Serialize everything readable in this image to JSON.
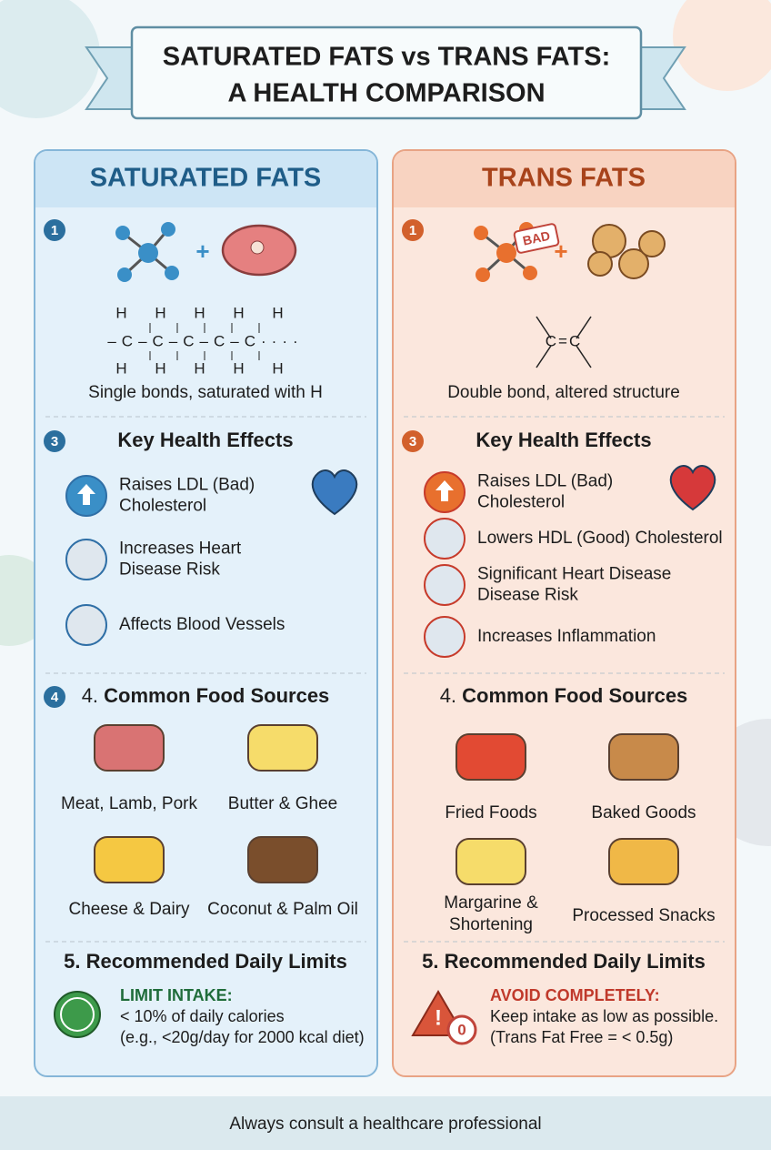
{
  "header": {
    "title_lines": [
      "SATURATED FATS vs TRANS FATS:",
      "A HEALTH COMPARISON"
    ]
  },
  "columns": [
    {
      "heading": "SATURATED FATS",
      "structure": {
        "step": "1",
        "formula": [
          "H H H H H",
          "–C–C–C–C–C····",
          "H H H H H"
        ],
        "caption": "Single bonds, saturated with H"
      },
      "effects": {
        "step": "3",
        "title": "Key Health Effects",
        "items": [
          {
            "lines": [
              "Raises LDL (Bad)",
              "Cholesterol"
            ]
          },
          {
            "lines": [
              "Increases Heart",
              "Disease Risk"
            ]
          },
          {
            "lines": [
              "Affects Blood Vessels"
            ]
          }
        ]
      },
      "foods": {
        "step": "4",
        "number": "4.",
        "title": "Common Food Sources",
        "items": [
          {
            "lines": [
              "Meat, Lamb, Pork"
            ]
          },
          {
            "lines": [
              "Butter & Ghee"
            ]
          },
          {
            "lines": [
              "Cheese & Dairy"
            ]
          },
          {
            "lines": [
              "Coconut & Palm Oil"
            ]
          }
        ]
      },
      "limits": {
        "title": "5. Recommended Daily Limits",
        "label": "LIMIT INTAKE:",
        "lines": [
          "< 10% of daily calories",
          "(e.g., <20g/day for 2000 kcal diet)"
        ]
      }
    },
    {
      "heading": "TRANS FATS",
      "structure": {
        "step": "1",
        "badge": "BAD",
        "formula": [
          "C=C"
        ],
        "caption": "Double bond, altered structure"
      },
      "effects": {
        "step": "3",
        "title": "Key Health Effects",
        "items": [
          {
            "lines": [
              "Raises LDL (Bad)",
              "Cholesterol"
            ]
          },
          {
            "lines": [
              "Lowers HDL (Good) Cholesterol"
            ]
          },
          {
            "lines": [
              "Significant Heart Disease",
              "Disease Risk"
            ]
          },
          {
            "lines": [
              "Increases Inflammation"
            ]
          }
        ]
      },
      "foods": {
        "number": "4.",
        "title": "Common Food Sources",
        "items": [
          {
            "lines": [
              "Fried Foods"
            ]
          },
          {
            "lines": [
              "Baked Goods"
            ]
          },
          {
            "lines": [
              "Margarine &",
              "Shortening"
            ]
          },
          {
            "lines": [
              "Processed Snacks"
            ]
          }
        ]
      },
      "limits": {
        "title": "5. Recommended Daily Limits",
        "label": "AVOID COMPLETELY:",
        "icon_text": "0",
        "lines": [
          "Keep intake as low as possible.",
          "(Trans Fat Free = < 0.5g)"
        ]
      }
    }
  ],
  "footer": "Always consult a healthcare professional"
}
